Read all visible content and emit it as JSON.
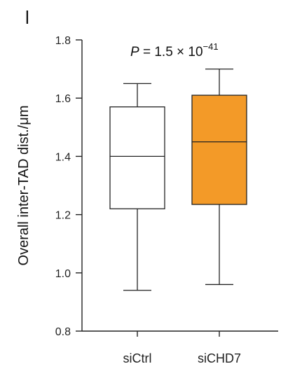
{
  "panel_label": "l",
  "chart_data": {
    "type": "box",
    "categories": [
      "siCtrl",
      "siCHD7"
    ],
    "ylabel": "Overall inter-TAD dist./μm",
    "xlabel": "",
    "ylim": [
      0.8,
      1.8
    ],
    "yticks": [
      "0.8",
      "1.0",
      "1.2",
      "1.4",
      "1.6",
      "1.8"
    ],
    "annotation": {
      "p_symbol": "P",
      "equals": " = ",
      "mantissa": "1.5 × 10",
      "exponent": "−41"
    },
    "boxes": [
      {
        "name": "siCtrl",
        "whisker_low": 0.94,
        "q1": 1.22,
        "median": 1.4,
        "q3": 1.57,
        "whisker_high": 1.65,
        "fill": "#ffffff"
      },
      {
        "name": "siCHD7",
        "whisker_low": 0.96,
        "q1": 1.235,
        "median": 1.45,
        "q3": 1.61,
        "whisker_high": 1.7,
        "fill": "#F39A28"
      }
    ],
    "grid": false,
    "colors": {
      "axis": "#222222",
      "box_stroke": "#222222",
      "siCHD7_fill": "#F39A28"
    }
  }
}
